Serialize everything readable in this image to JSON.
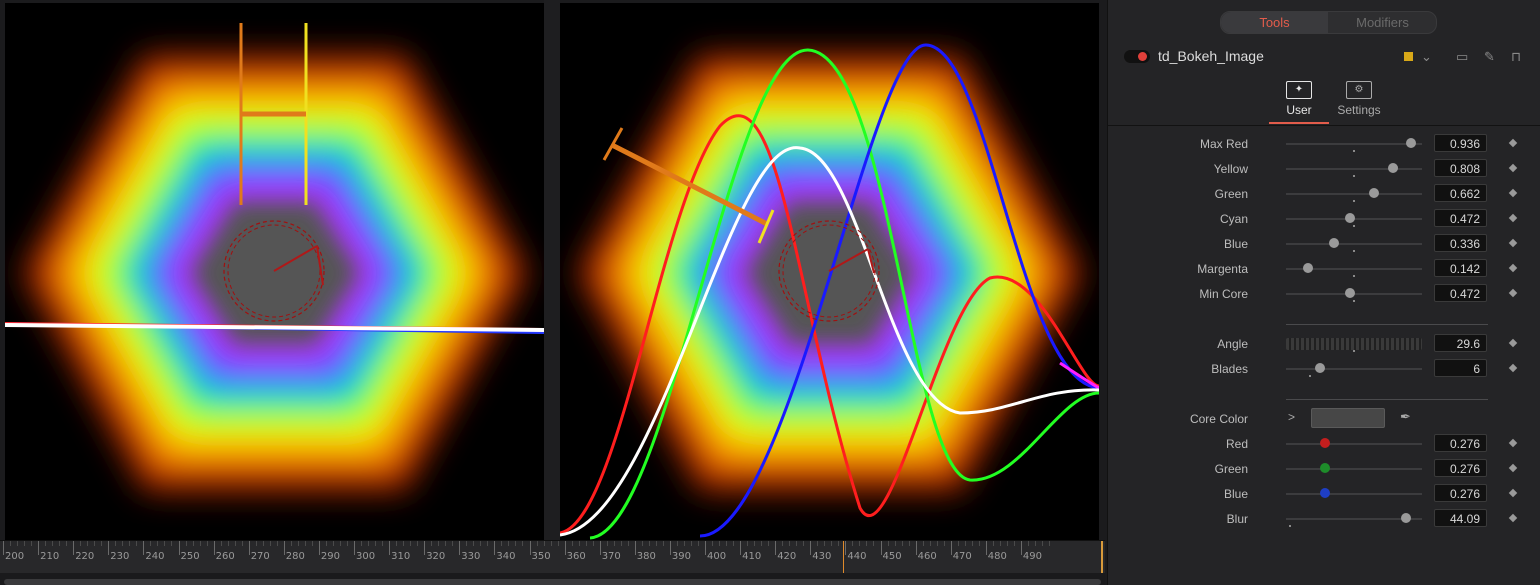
{
  "inspector": {
    "tabs": {
      "tools": "Tools",
      "modifiers": "Modifiers"
    },
    "node_name": "td_Bokeh_Image",
    "node_color": "#d8a818",
    "sub_tabs": {
      "user": "User",
      "settings": "Settings"
    },
    "params": [
      {
        "id": "max-red",
        "label": "Max Red",
        "value": "0.936",
        "fraction": 0.916,
        "default": 0.5
      },
      {
        "id": "yellow",
        "label": "Yellow",
        "value": "0.808",
        "fraction": 0.79,
        "default": 0.5
      },
      {
        "id": "green",
        "label": "Green",
        "value": "0.662",
        "fraction": 0.65,
        "default": 0.5
      },
      {
        "id": "cyan",
        "label": "Cyan",
        "value": "0.472",
        "fraction": 0.472,
        "default": 0.5
      },
      {
        "id": "blue",
        "label": "Blue",
        "value": "0.336",
        "fraction": 0.35,
        "default": 0.5
      },
      {
        "id": "margenta",
        "label": "Margenta",
        "value": "0.142",
        "fraction": 0.16,
        "default": 0.5
      },
      {
        "id": "min-core",
        "label": "Min Core",
        "value": "0.472",
        "fraction": 0.472,
        "default": 0.5
      }
    ],
    "angle": {
      "label": "Angle",
      "value": "29.6"
    },
    "blades": {
      "label": "Blades",
      "value": "6",
      "fraction": 0.25,
      "default": 0.18
    },
    "core_color": {
      "label": "Core Color",
      "swatch": "#474747"
    },
    "core_channels": [
      {
        "id": "red",
        "label": "Red",
        "value": "0.276",
        "fraction": 0.29,
        "color": "#c41e1e"
      },
      {
        "id": "green",
        "label": "Green",
        "value": "0.276",
        "fraction": 0.29,
        "color": "#1e8c2a"
      },
      {
        "id": "blue",
        "label": "Blue",
        "value": "0.276",
        "fraction": 0.29,
        "color": "#1e3ec4"
      }
    ],
    "blur": {
      "label": "Blur",
      "value": "44.09",
      "fraction": 0.88,
      "default": 0.03
    }
  },
  "timeline": {
    "start": 200,
    "end": 490,
    "step": 10,
    "current_frame": 430
  }
}
